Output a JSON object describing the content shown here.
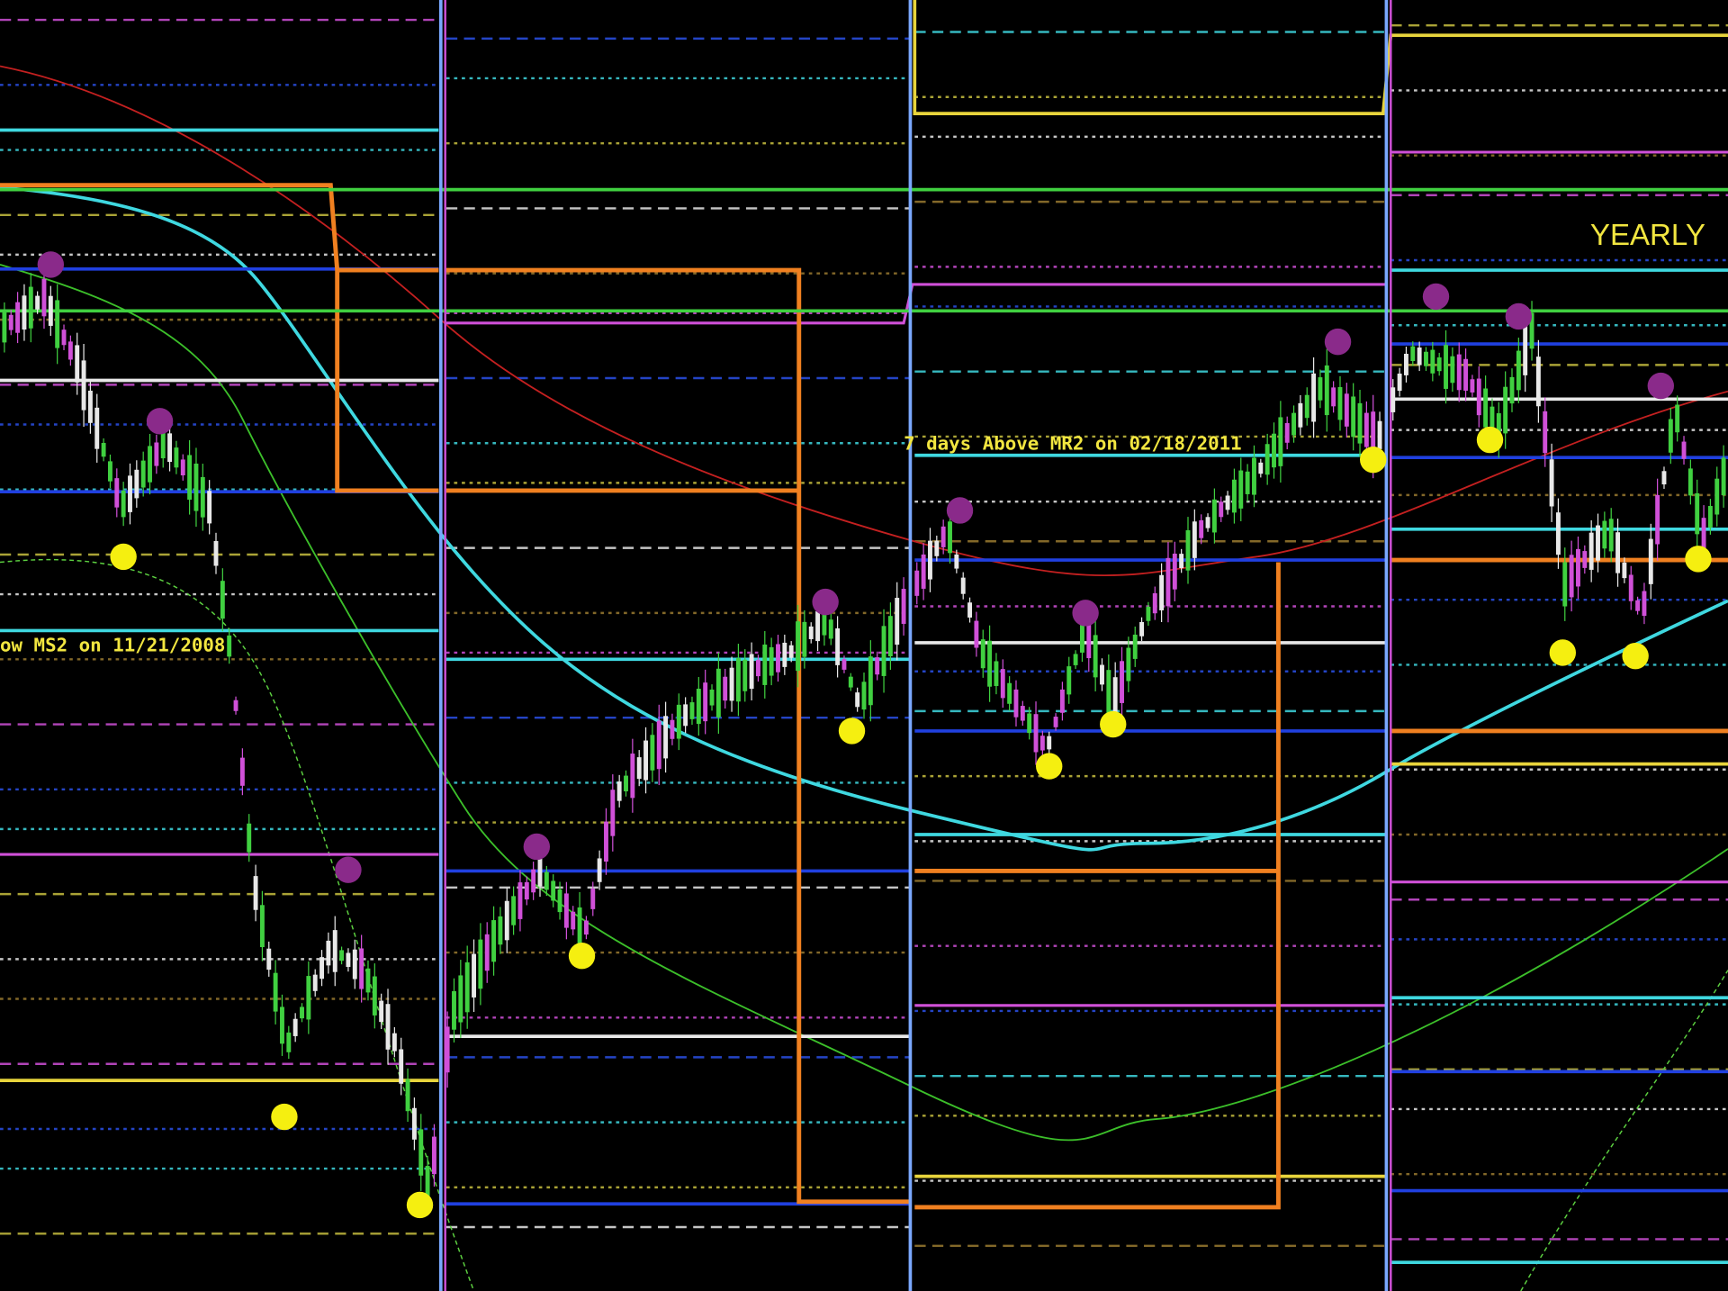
{
  "annotations": {
    "yearly": "YEARLY",
    "mr2": "7 days Above MR2 on 02/18/2011",
    "ms2": "ow MS2 on 11/21/2008"
  }
}
